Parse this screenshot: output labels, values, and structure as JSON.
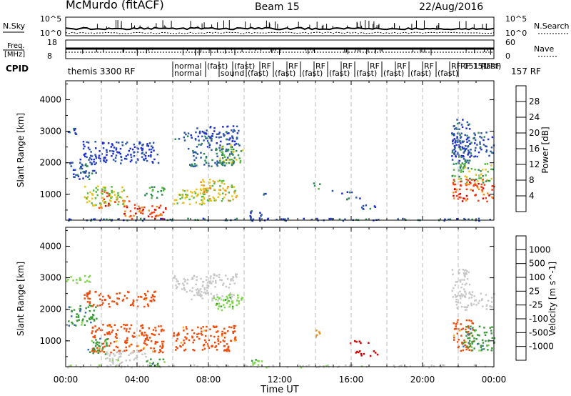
{
  "header": {
    "station": "McMurdo (fitACF)",
    "beam": "Beam 15",
    "date": "22/Aug/2016"
  },
  "noise_panel": {
    "left_label": "N.Sky",
    "right_label": "N.Search",
    "left_ticks": [
      "10^5",
      "10^0"
    ],
    "right_ticks": [
      "10^5",
      "10^0"
    ]
  },
  "freq_panel": {
    "left_label_line1": "Freq.",
    "left_label_line2": "[MHz]",
    "right_label": "Nave",
    "left_ticks": [
      "18",
      "8"
    ],
    "right_ticks": [
      "60",
      "0"
    ]
  },
  "cpid": {
    "label": "CPID",
    "entries": [
      "themis 3300 RF",
      "normal",
      "normal",
      "(fast)",
      "sound",
      "(fast)",
      "(fast)",
      "RF",
      "(fast)",
      "RF",
      "(fast)",
      "RF",
      "(fast)",
      "RF",
      "(fast)",
      "RF",
      "(fast)",
      "RF",
      "(fast)",
      "RF",
      "(fast)",
      "RF 151 RF",
      "(fast)",
      "157 RF"
    ]
  },
  "colors": {
    "power_scale": [
      "#1f2bd6",
      "#2d55a8",
      "#2f8a55",
      "#56b83a",
      "#e8c21a",
      "#f08a1a",
      "#ff3a10",
      "#d60000"
    ],
    "velocity_scale": [
      "#d00000",
      "#f04a0a",
      "#f58a10",
      "#fbb024",
      "#c8c8c8",
      "#7ed84a",
      "#3a9a3a",
      "#3a6ab8",
      "#1f34c8"
    ],
    "ground_scatter": "#9a9a9a",
    "scatter_outline": "#2d55a8"
  },
  "chart_data": [
    {
      "type": "heatmap",
      "title": "",
      "xlabel": "Time UT",
      "ylabel": "Slant Range [km]",
      "xlim": [
        0,
        24
      ],
      "ylim": [
        180,
        4600
      ],
      "x_ticks": [
        "00:00",
        "04:00",
        "08:00",
        "12:00",
        "16:00",
        "20:00",
        "00:00"
      ],
      "y_ticks": [
        1000,
        2000,
        3000,
        4000
      ],
      "colorbar_label": "Power [dB]",
      "colorbar_ticks": [
        4,
        8,
        12,
        16,
        20,
        24,
        28
      ],
      "colorbar_range": [
        0,
        32
      ],
      "regions": [
        {
          "t": [
            0.0,
            0.6
          ],
          "r": [
            2900,
            3150
          ],
          "v": 5
        },
        {
          "t": [
            0.2,
            1.7
          ],
          "r": [
            1500,
            2200
          ],
          "v": 6
        },
        {
          "t": [
            0.9,
            5.2
          ],
          "r": [
            2000,
            2700
          ],
          "v": 4
        },
        {
          "t": [
            1.0,
            3.3
          ],
          "r": [
            650,
            1300
          ],
          "v": 16
        },
        {
          "t": [
            1.8,
            2.4
          ],
          "r": [
            550,
            1150
          ],
          "v": 26
        },
        {
          "t": [
            2.7,
            3.6
          ],
          "r": [
            750,
            1000
          ],
          "v": 24
        },
        {
          "t": [
            3.2,
            5.6
          ],
          "r": [
            250,
            700
          ],
          "v": 26
        },
        {
          "t": [
            4.4,
            5.6
          ],
          "r": [
            900,
            1300
          ],
          "v": 12
        },
        {
          "t": [
            6.0,
            8.2
          ],
          "r": [
            2700,
            3000
          ],
          "v": 5
        },
        {
          "t": [
            7.2,
            9.7
          ],
          "r": [
            2500,
            3200
          ],
          "v": 5
        },
        {
          "t": [
            6.8,
            9.4
          ],
          "r": [
            1900,
            2500
          ],
          "v": 8
        },
        {
          "t": [
            8.6,
            9.9
          ],
          "r": [
            2000,
            2600
          ],
          "v": 14
        },
        {
          "t": [
            6.0,
            8.0
          ],
          "r": [
            700,
            1200
          ],
          "v": 16
        },
        {
          "t": [
            7.5,
            9.6
          ],
          "r": [
            800,
            1500
          ],
          "v": 18
        },
        {
          "t": [
            10.3,
            11.0
          ],
          "r": [
            250,
            500
          ],
          "v": 6
        },
        {
          "t": [
            11.0,
            11.5
          ],
          "r": [
            950,
            1050
          ],
          "v": 6
        },
        {
          "t": [
            13.8,
            14.2
          ],
          "r": [
            1150,
            1400
          ],
          "v": 14
        },
        {
          "t": [
            14.8,
            16.0
          ],
          "r": [
            1050,
            1150
          ],
          "v": 6
        },
        {
          "t": [
            15.5,
            16.5
          ],
          "r": [
            850,
            950
          ],
          "v": 6
        },
        {
          "t": [
            16.5,
            17.4
          ],
          "r": [
            550,
            700
          ],
          "v": 6
        },
        {
          "t": [
            21.6,
            22.6
          ],
          "r": [
            1800,
            3400
          ],
          "v": 6
        },
        {
          "t": [
            21.6,
            24.0
          ],
          "r": [
            2200,
            3000
          ],
          "v": 5
        },
        {
          "t": [
            21.6,
            24.0
          ],
          "r": [
            1400,
            2000
          ],
          "v": 14
        },
        {
          "t": [
            21.6,
            24.0
          ],
          "r": [
            800,
            1500
          ],
          "v": 26
        },
        {
          "t": [
            0.0,
            24.0
          ],
          "r": [
            180,
            260
          ],
          "v": 6
        }
      ]
    },
    {
      "type": "heatmap",
      "title": "",
      "xlabel": "Time UT",
      "ylabel": "Slant Range [km]",
      "xlim": [
        0,
        24
      ],
      "ylim": [
        180,
        4600
      ],
      "x_ticks": [
        "00:00",
        "04:00",
        "08:00",
        "12:00",
        "16:00",
        "20:00",
        "00:00"
      ],
      "y_ticks": [
        1000,
        2000,
        3000,
        4000
      ],
      "colorbar_label": "Velocity [m s^-1]",
      "colorbar_ticks": [
        "1000",
        "500",
        "100",
        "25",
        "-25",
        "-100",
        "-500",
        "-1000"
      ],
      "regions": [
        {
          "t": [
            0.0,
            1.4
          ],
          "r": [
            2850,
            3100
          ],
          "v": 100
        },
        {
          "t": [
            0.1,
            1.7
          ],
          "r": [
            1500,
            2200
          ],
          "v": 500
        },
        {
          "t": [
            1.0,
            5.0
          ],
          "r": [
            2100,
            2600
          ],
          "v": -100
        },
        {
          "t": [
            1.4,
            5.5
          ],
          "r": [
            650,
            1550
          ],
          "v": -100
        },
        {
          "t": [
            1.2,
            2.4
          ],
          "r": [
            600,
            1100
          ],
          "v": 500
        },
        {
          "t": [
            2.2,
            4.6
          ],
          "r": [
            300,
            700
          ],
          "v": 25
        },
        {
          "t": [
            4.5,
            5.6
          ],
          "r": [
            200,
            450
          ],
          "v": 500
        },
        {
          "t": [
            6.0,
            8.2
          ],
          "r": [
            2500,
            3100
          ],
          "v": 0
        },
        {
          "t": [
            7.8,
            9.6
          ],
          "r": [
            2700,
            3150
          ],
          "v": 0
        },
        {
          "t": [
            7.0,
            9.4
          ],
          "r": [
            2300,
            2600
          ],
          "v": 0
        },
        {
          "t": [
            8.2,
            9.9
          ],
          "r": [
            2000,
            2500
          ],
          "v": 100
        },
        {
          "t": [
            6.0,
            9.5
          ],
          "r": [
            700,
            1500
          ],
          "v": -100
        },
        {
          "t": [
            10.3,
            11.0
          ],
          "r": [
            250,
            500
          ],
          "v": 100
        },
        {
          "t": [
            13.8,
            14.2
          ],
          "r": [
            1150,
            1400
          ],
          "v": -25
        },
        {
          "t": [
            15.9,
            17.0
          ],
          "r": [
            950,
            1050
          ],
          "v": -500
        },
        {
          "t": [
            16.2,
            17.6
          ],
          "r": [
            550,
            700
          ],
          "v": -500
        },
        {
          "t": [
            21.6,
            22.6
          ],
          "r": [
            2400,
            3300
          ],
          "v": 0
        },
        {
          "t": [
            21.8,
            24.0
          ],
          "r": [
            2000,
            2600
          ],
          "v": 0
        },
        {
          "t": [
            21.7,
            22.8
          ],
          "r": [
            700,
            1700
          ],
          "v": -100
        },
        {
          "t": [
            22.2,
            24.0
          ],
          "r": [
            700,
            1500
          ],
          "v": 500
        },
        {
          "t": [
            0.0,
            24.0
          ],
          "r": [
            180,
            260
          ],
          "v": 25
        }
      ]
    }
  ]
}
